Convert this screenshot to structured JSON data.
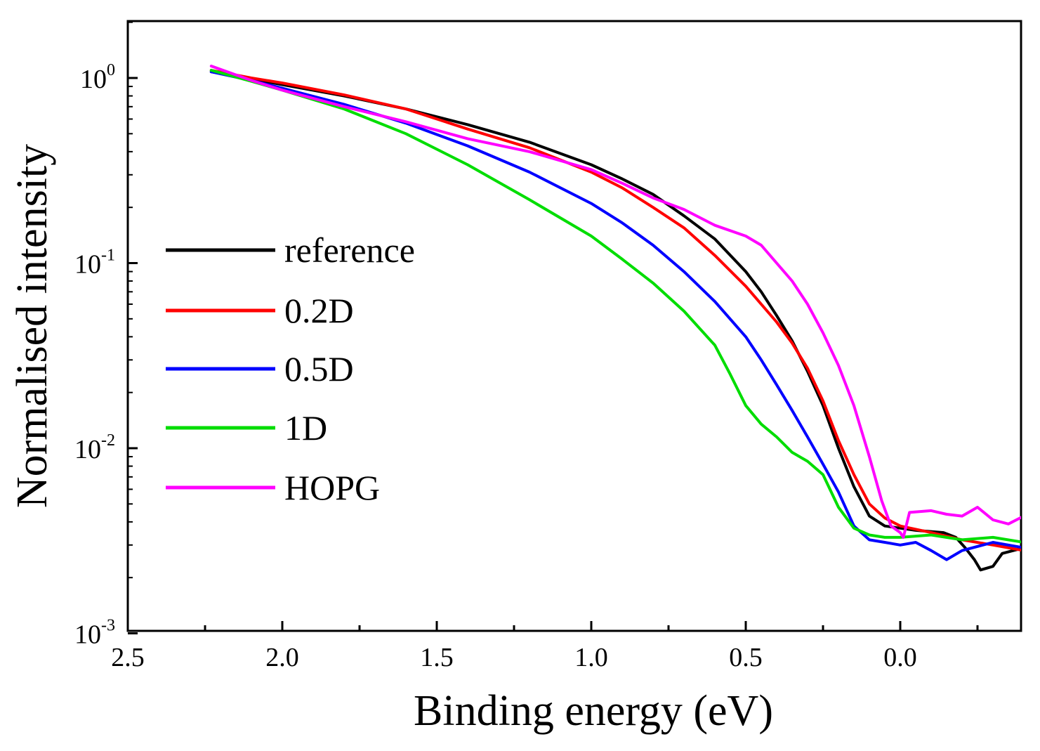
{
  "chart_data": {
    "type": "line",
    "title": "",
    "xlabel": "Binding energy (eV)",
    "ylabel": "Normalised intensity",
    "x_reversed": true,
    "xlim": [
      2.5,
      -0.4
    ],
    "ylim": [
      0.001,
      2
    ],
    "y_scale": "log",
    "x_ticks": [
      2.5,
      2.0,
      1.5,
      1.0,
      0.5,
      0.0
    ],
    "x_tick_labels": [
      "2.5",
      "2.0",
      "1.5",
      "1.0",
      "0.5",
      "0.0"
    ],
    "y_ticks": [
      1,
      0.1,
      0.01,
      0.001
    ],
    "y_tick_labels": [
      {
        "base": "10",
        "exp": "0"
      },
      {
        "base": "10",
        "exp": "-1"
      },
      {
        "base": "10",
        "exp": "-2"
      },
      {
        "base": "10",
        "exp": "-3"
      }
    ],
    "grid": false,
    "legend_position": "center-left",
    "series": [
      {
        "name": "reference",
        "color": "#000000",
        "points": [
          [
            2.23,
            1.08
          ],
          [
            2.1,
            0.99
          ],
          [
            2.0,
            0.92
          ],
          [
            1.8,
            0.8
          ],
          [
            1.6,
            0.68
          ],
          [
            1.4,
            0.56
          ],
          [
            1.2,
            0.45
          ],
          [
            1.0,
            0.34
          ],
          [
            0.9,
            0.285
          ],
          [
            0.8,
            0.235
          ],
          [
            0.7,
            0.18
          ],
          [
            0.6,
            0.135
          ],
          [
            0.5,
            0.09
          ],
          [
            0.45,
            0.07
          ],
          [
            0.4,
            0.052
          ],
          [
            0.35,
            0.038
          ],
          [
            0.3,
            0.026
          ],
          [
            0.25,
            0.017
          ],
          [
            0.2,
            0.01
          ],
          [
            0.15,
            0.0062
          ],
          [
            0.1,
            0.0043
          ],
          [
            0.05,
            0.0038
          ],
          [
            0.0,
            0.0037
          ],
          [
            -0.05,
            0.0036
          ],
          [
            -0.14,
            0.0035
          ],
          [
            -0.18,
            0.0033
          ],
          [
            -0.21,
            0.0029
          ],
          [
            -0.24,
            0.0025
          ],
          [
            -0.26,
            0.0022
          ],
          [
            -0.3,
            0.0023
          ],
          [
            -0.33,
            0.0027
          ],
          [
            -0.4,
            0.0029
          ]
        ]
      },
      {
        "name": "0.2D",
        "color": "#ff0000",
        "points": [
          [
            2.23,
            1.1
          ],
          [
            2.1,
            1.0
          ],
          [
            2.0,
            0.94
          ],
          [
            1.8,
            0.81
          ],
          [
            1.6,
            0.68
          ],
          [
            1.4,
            0.53
          ],
          [
            1.2,
            0.42
          ],
          [
            1.0,
            0.31
          ],
          [
            0.9,
            0.255
          ],
          [
            0.8,
            0.2
          ],
          [
            0.7,
            0.155
          ],
          [
            0.6,
            0.11
          ],
          [
            0.5,
            0.075
          ],
          [
            0.4,
            0.048
          ],
          [
            0.35,
            0.037
          ],
          [
            0.3,
            0.027
          ],
          [
            0.25,
            0.018
          ],
          [
            0.2,
            0.011
          ],
          [
            0.15,
            0.0072
          ],
          [
            0.1,
            0.005
          ],
          [
            0.05,
            0.0042
          ],
          [
            0.0,
            0.0038
          ],
          [
            -0.1,
            0.0035
          ],
          [
            -0.2,
            0.0032
          ],
          [
            -0.3,
            0.003
          ],
          [
            -0.4,
            0.0028
          ]
        ]
      },
      {
        "name": "0.5D",
        "color": "#0000ff",
        "points": [
          [
            2.23,
            1.08
          ],
          [
            2.1,
            0.97
          ],
          [
            2.0,
            0.88
          ],
          [
            1.8,
            0.72
          ],
          [
            1.6,
            0.57
          ],
          [
            1.4,
            0.43
          ],
          [
            1.2,
            0.31
          ],
          [
            1.0,
            0.21
          ],
          [
            0.9,
            0.165
          ],
          [
            0.8,
            0.125
          ],
          [
            0.7,
            0.09
          ],
          [
            0.6,
            0.062
          ],
          [
            0.5,
            0.04
          ],
          [
            0.45,
            0.03
          ],
          [
            0.4,
            0.022
          ],
          [
            0.35,
            0.016
          ],
          [
            0.3,
            0.0115
          ],
          [
            0.25,
            0.0082
          ],
          [
            0.2,
            0.0058
          ],
          [
            0.15,
            0.0038
          ],
          [
            0.1,
            0.0032
          ],
          [
            0.05,
            0.0031
          ],
          [
            0.0,
            0.003
          ],
          [
            -0.05,
            0.0031
          ],
          [
            -0.1,
            0.0028
          ],
          [
            -0.15,
            0.0025
          ],
          [
            -0.2,
            0.0028
          ],
          [
            -0.3,
            0.0031
          ],
          [
            -0.4,
            0.0029
          ]
        ]
      },
      {
        "name": "1D",
        "color": "#00dd00",
        "points": [
          [
            2.23,
            1.1
          ],
          [
            2.1,
            0.96
          ],
          [
            2.0,
            0.86
          ],
          [
            1.8,
            0.68
          ],
          [
            1.6,
            0.5
          ],
          [
            1.4,
            0.34
          ],
          [
            1.2,
            0.22
          ],
          [
            1.0,
            0.14
          ],
          [
            0.9,
            0.105
          ],
          [
            0.8,
            0.078
          ],
          [
            0.7,
            0.055
          ],
          [
            0.6,
            0.036
          ],
          [
            0.55,
            0.025
          ],
          [
            0.5,
            0.017
          ],
          [
            0.45,
            0.0135
          ],
          [
            0.4,
            0.0115
          ],
          [
            0.35,
            0.0095
          ],
          [
            0.3,
            0.0085
          ],
          [
            0.25,
            0.0072
          ],
          [
            0.2,
            0.0048
          ],
          [
            0.15,
            0.0037
          ],
          [
            0.1,
            0.0034
          ],
          [
            0.05,
            0.0033
          ],
          [
            0.0,
            0.0033
          ],
          [
            -0.1,
            0.0034
          ],
          [
            -0.2,
            0.0032
          ],
          [
            -0.3,
            0.0033
          ],
          [
            -0.4,
            0.0031
          ]
        ]
      },
      {
        "name": "HOPG",
        "color": "#ff00ff",
        "points": [
          [
            2.23,
            1.16
          ],
          [
            2.1,
            0.97
          ],
          [
            2.0,
            0.86
          ],
          [
            1.8,
            0.7
          ],
          [
            1.6,
            0.58
          ],
          [
            1.4,
            0.47
          ],
          [
            1.2,
            0.4
          ],
          [
            1.0,
            0.32
          ],
          [
            0.9,
            0.27
          ],
          [
            0.8,
            0.225
          ],
          [
            0.7,
            0.195
          ],
          [
            0.6,
            0.16
          ],
          [
            0.5,
            0.14
          ],
          [
            0.45,
            0.125
          ],
          [
            0.4,
            0.1
          ],
          [
            0.35,
            0.08
          ],
          [
            0.3,
            0.06
          ],
          [
            0.25,
            0.042
          ],
          [
            0.2,
            0.028
          ],
          [
            0.15,
            0.017
          ],
          [
            0.1,
            0.009
          ],
          [
            0.06,
            0.0052
          ],
          [
            0.03,
            0.0038
          ],
          [
            0.0,
            0.0035
          ],
          [
            -0.01,
            0.0033
          ],
          [
            -0.03,
            0.0045
          ],
          [
            -0.1,
            0.0046
          ],
          [
            -0.15,
            0.0044
          ],
          [
            -0.2,
            0.0043
          ],
          [
            -0.25,
            0.0048
          ],
          [
            -0.3,
            0.0041
          ],
          [
            -0.35,
            0.0039
          ],
          [
            -0.4,
            0.0043
          ]
        ]
      }
    ]
  }
}
